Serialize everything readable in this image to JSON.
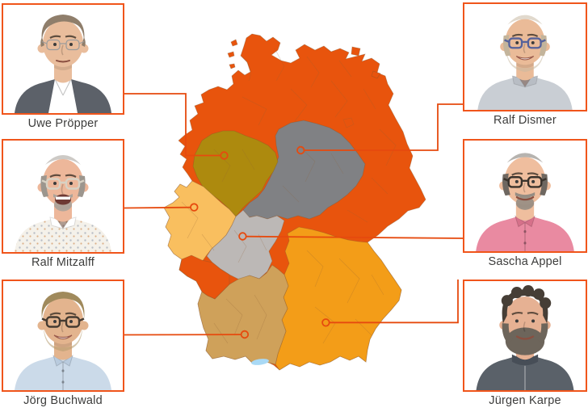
{
  "people": [
    {
      "name": "Uwe Pröpper",
      "position": "top-left",
      "avatar": {
        "skin": "#E9BD9C",
        "hair": "#8F7E6B",
        "style": "messy",
        "glasses": "#9B9B9B",
        "glasses_thin": true,
        "beard": null,
        "beard_style": "none",
        "shirt": "#FFFFFF",
        "shirt2": "#5C6169",
        "collar": "v-jacket",
        "mouth": "neutral"
      }
    },
    {
      "name": "Ralf Mitzalff",
      "position": "middle-left",
      "avatar": {
        "skin": "#EDB79A",
        "hair": "#9C968E",
        "style": "balding",
        "glasses": "#D8D2C4",
        "glasses_thin": false,
        "beard": "#ABA39A",
        "beard_style": "goatee",
        "shirt": "#F4F1EA",
        "shirt_pattern": true,
        "shirt2": "#FFFFFF",
        "collar": "open",
        "mouth": "open"
      }
    },
    {
      "name": "Jörg Buchwald",
      "position": "bottom-left",
      "avatar": {
        "skin": "#E3B48E",
        "hair": "#A08A5C",
        "style": "short",
        "glasses": "#453B31",
        "glasses_thin": false,
        "beard": "#B59B6E",
        "beard_style": "stubble",
        "shirt": "#CBDAE9",
        "shirt2": "#B9CBDE",
        "collar": "buttoned",
        "mouth": "grin"
      }
    },
    {
      "name": "Ralf Dismer",
      "position": "top-right",
      "avatar": {
        "skin": "#EABB98",
        "hair": "#C3B49B",
        "style": "balding",
        "glasses": "#56629B",
        "glasses_thin": false,
        "beard": "#C9B9A2",
        "beard_style": "stubble",
        "shirt": "#C9CED4",
        "shirt2": "#B8BDC4",
        "collar": "open",
        "mouth": "grin"
      }
    },
    {
      "name": "Sascha Appel",
      "position": "middle-right",
      "avatar": {
        "skin": "#EFBE9E",
        "hair": "#6E6760",
        "style": "balding",
        "glasses": "#3A332C",
        "glasses_thin": false,
        "beard": "#968D83",
        "beard_style": "goatee",
        "shirt": "#E98AA1",
        "shirt2": "#D6718A",
        "collar": "buttoned",
        "mouth": "smile"
      }
    },
    {
      "name": "Jürgen Karpe",
      "position": "bottom-right",
      "avatar": {
        "skin": "#E6B193",
        "hair": "#463E36",
        "style": "curly",
        "glasses": null,
        "glasses_thin": false,
        "beard": "#6D655B",
        "beard_style": "full",
        "shirt": "#5A6169",
        "shirt2": "#474E57",
        "collar": "zip",
        "mouth": "smile"
      }
    }
  ],
  "card": {
    "border_color": "#F0551B",
    "name_color": "#3C3C3B"
  },
  "map": {
    "country": "Germany sales regions",
    "connector_color": "#E64A0E",
    "regions": [
      {
        "id": "north-east",
        "color": "#E8540D"
      },
      {
        "id": "central-east",
        "color": "#808184"
      },
      {
        "id": "lower-saxony-west",
        "color": "#AD8A0E"
      },
      {
        "id": "west-rhineland",
        "color": "#F9BF5F"
      },
      {
        "id": "hesse-central",
        "color": "#BCB8B6"
      },
      {
        "id": "bavaria",
        "color": "#F39D18"
      },
      {
        "id": "baden-wuerttemberg",
        "color": "#CFA15A"
      },
      {
        "id": "saar-palatinate",
        "color": "#E8540D"
      },
      {
        "id": "lake-constance",
        "color": "#A9D9F5"
      }
    ]
  }
}
